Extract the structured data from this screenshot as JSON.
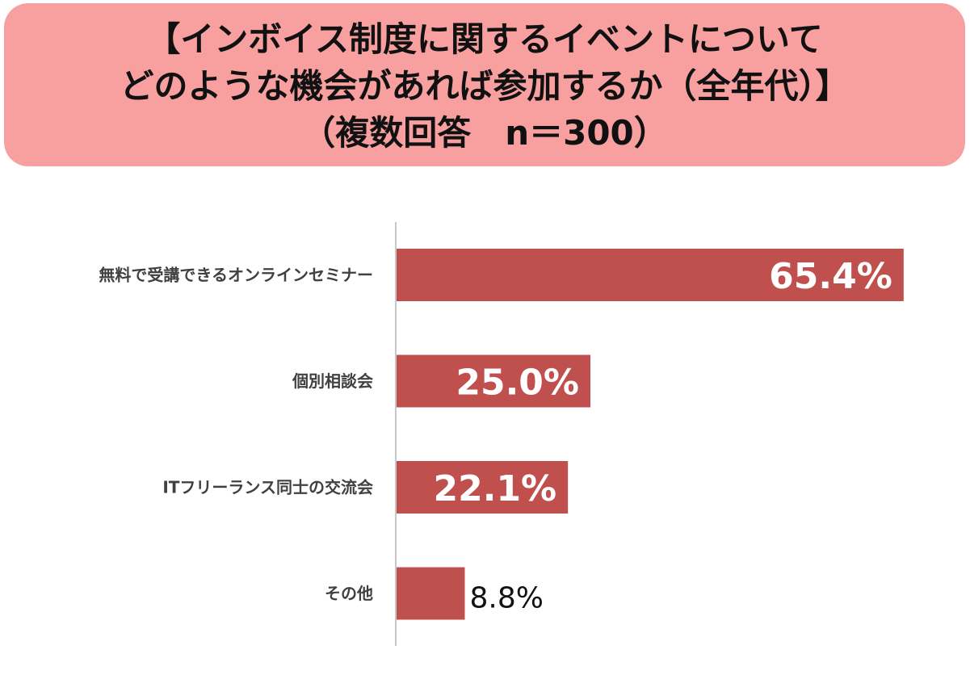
{
  "title": {
    "line1": "【インボイス制度に関するイベントについて",
    "line2": "どのような機会があれば参加するか（全年代）】",
    "line3": "（複数回答　n＝300）"
  },
  "colors": {
    "title_background": "#f8a0a0",
    "bar": "#c0504d",
    "axis": "#c8c8c8"
  },
  "chart_data": {
    "type": "bar",
    "orientation": "horizontal",
    "categories": [
      "無料で受講できるオンラインセミナー",
      "個別相談会",
      "ITフリーランス同士の交流会",
      "その他"
    ],
    "values": [
      65.4,
      25.0,
      22.1,
      8.8
    ],
    "data_labels": [
      "65.4%",
      "25.0%",
      "22.1%",
      "8.8%"
    ],
    "unit": "%",
    "xlim": [
      0,
      100
    ],
    "grid": false,
    "legend": "none"
  }
}
